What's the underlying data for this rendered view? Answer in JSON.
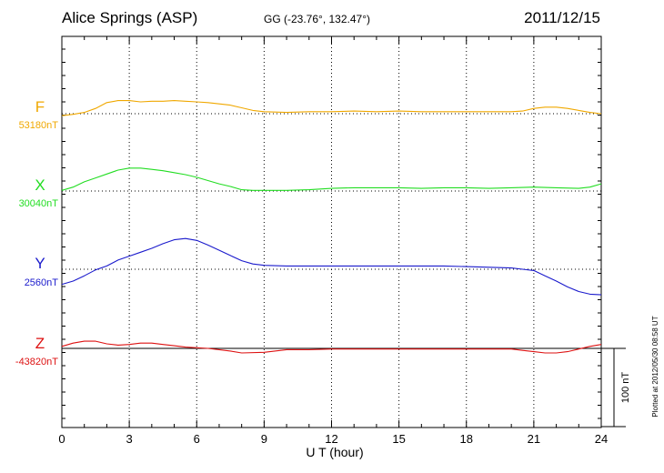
{
  "header": {
    "station": "Alice Springs (ASP)",
    "coords": "GG (-23.76°, 132.47°)",
    "date": "2011/12/15"
  },
  "chart_data": {
    "type": "line",
    "title": "Alice Springs (ASP)",
    "xlabel": "U T (hour)",
    "x_ticks": [
      "0",
      "3",
      "6",
      "9",
      "12",
      "15",
      "18",
      "21",
      "24"
    ],
    "xlim": [
      0,
      24
    ],
    "scale_bar": {
      "label": "100 nT",
      "value_nT": 100
    },
    "plotted_note": "Plotted at 2012/05/30 08:58 UT",
    "grid": "dotted",
    "series": [
      {
        "name": "F",
        "baseline_label": "53180nT",
        "color": "#f0a800",
        "x": [
          0,
          0.5,
          1,
          1.5,
          2,
          2.5,
          3,
          3.5,
          4,
          4.5,
          5,
          5.5,
          6,
          6.5,
          7,
          7.5,
          8,
          8.5,
          9,
          10,
          11,
          12,
          13,
          14,
          15,
          16,
          17,
          18,
          19,
          20,
          20.5,
          21,
          21.5,
          22,
          22.5,
          23,
          23.5,
          24
        ],
        "values": [
          -3,
          -1,
          2,
          8,
          17,
          20,
          20,
          18,
          19,
          19,
          20,
          19,
          18,
          17,
          15,
          13,
          9,
          5,
          3,
          2,
          3,
          3,
          4,
          3,
          4,
          3,
          3,
          3,
          3,
          3,
          4,
          8,
          10,
          10,
          8,
          5,
          2,
          0
        ]
      },
      {
        "name": "X",
        "baseline_label": "30040nT",
        "color": "#22dd22",
        "x": [
          0,
          0.5,
          1,
          1.5,
          2,
          2.5,
          3,
          3.5,
          4,
          4.5,
          5,
          5.5,
          6,
          6.5,
          7,
          7.5,
          8,
          8.5,
          9,
          10,
          11,
          12,
          13,
          14,
          15,
          16,
          17,
          18,
          19,
          20,
          21,
          22,
          23,
          23.5,
          24
        ],
        "values": [
          1,
          6,
          14,
          20,
          26,
          32,
          35,
          35,
          33,
          31,
          28,
          25,
          21,
          16,
          11,
          7,
          2,
          1,
          1,
          1,
          2,
          4,
          5,
          5,
          5,
          4,
          5,
          5,
          4,
          5,
          6,
          5,
          4,
          6,
          11
        ]
      },
      {
        "name": "Y",
        "baseline_label": "2560nT",
        "color": "#1a1acc",
        "x": [
          0,
          0.5,
          1,
          1.5,
          2,
          2.5,
          3,
          3.5,
          4,
          4.5,
          5,
          5.5,
          6,
          6.5,
          7,
          7.5,
          8,
          8.5,
          9,
          10,
          11,
          12,
          13,
          14,
          15,
          16,
          17,
          18,
          19,
          20,
          20.5,
          21,
          21.5,
          22,
          22.5,
          23,
          23.5,
          24
        ],
        "values": [
          -23,
          -18,
          -10,
          -1,
          5,
          14,
          20,
          26,
          32,
          39,
          45,
          47,
          44,
          37,
          29,
          21,
          13,
          8,
          6,
          5,
          5,
          5,
          5,
          5,
          5,
          5,
          5,
          4,
          3,
          2,
          0,
          -2,
          -10,
          -18,
          -27,
          -34,
          -38,
          -39
        ]
      },
      {
        "name": "Z",
        "baseline_label": "-43820nT",
        "color": "#dd1111",
        "x": [
          0,
          0.5,
          1,
          1.5,
          2,
          2.5,
          3,
          3.5,
          4,
          4.5,
          5,
          5.5,
          6,
          6.5,
          7,
          7.5,
          8,
          9,
          10,
          11,
          12,
          13,
          14,
          15,
          16,
          17,
          18,
          19,
          20,
          20.5,
          21,
          21.5,
          22,
          22.5,
          23,
          23.5,
          24
        ],
        "values": [
          3,
          8,
          11,
          11,
          7,
          5,
          6,
          8,
          8,
          6,
          4,
          2,
          1,
          0,
          -2,
          -4,
          -7,
          -6,
          -2,
          -2,
          -1,
          -1,
          -1,
          -1,
          -1,
          -1,
          -1,
          -1,
          -1,
          -3,
          -5,
          -7,
          -7,
          -5,
          -1,
          3,
          6
        ]
      }
    ]
  }
}
